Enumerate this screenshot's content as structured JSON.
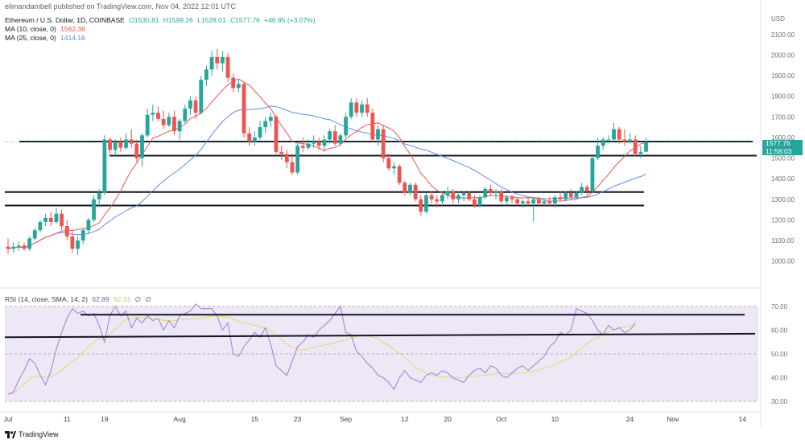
{
  "header": {
    "publisher_note": "elimandambell published on TradingView.com, Nov 04, 2022 12:01 UTC"
  },
  "legend": {
    "symbol": "Ethereum / U.S. Dollar, 1D, COINBASE",
    "open": "O1530.81",
    "high": "H1599.26",
    "low": "L1528.01",
    "close": "C1577.76",
    "change": "+46.95 (+3.07%)",
    "ma10_label": "MA (10, close, 0)",
    "ma10_value": "1562.38",
    "ma25_label": "MA (25, close, 0)",
    "ma25_value": "1414.16",
    "rsi_label": "RSI (14, close, SMA, 14, 2)",
    "rsi_value": "62.89",
    "rsi_sma_value": "62.31",
    "rsi_extra1": "∅",
    "rsi_extra2": "∅"
  },
  "price_tag": {
    "price": "1577.76",
    "countdown": "11:58:03"
  },
  "footer": {
    "brand": "TradingView"
  },
  "colors": {
    "up": "#26a69a",
    "down": "#ef5350",
    "ma10": "#ef5350",
    "ma25": "#5b8def",
    "rsi": "#9c7fd4",
    "rsi_sma": "#e2dc6b",
    "rsi_band": "#ede7f6"
  },
  "chart_data": [
    {
      "type": "candlestick",
      "title": "Ethereum / U.S. Dollar, 1D, COINBASE",
      "y_axis_unit": "USD",
      "ylim": [
        940,
        2150
      ],
      "y_ticks": [
        "1000.00",
        "1100.00",
        "1200.00",
        "1300.00",
        "1400.00",
        "1500.00",
        "1600.00",
        "1700.00",
        "1800.00",
        "1900.00",
        "2000.00",
        "2100.00"
      ],
      "x_tick_labels": [
        "Jul",
        "11",
        "19",
        "Aug",
        "15",
        "23",
        "Sep",
        "12",
        "20",
        "Oct",
        "10",
        "24",
        "Nov",
        "14"
      ],
      "candles": [
        {
          "o": 1070,
          "h": 1110,
          "l": 1035,
          "c": 1060
        },
        {
          "o": 1060,
          "h": 1090,
          "l": 1040,
          "c": 1070
        },
        {
          "o": 1070,
          "h": 1095,
          "l": 1050,
          "c": 1075
        },
        {
          "o": 1075,
          "h": 1090,
          "l": 1050,
          "c": 1060
        },
        {
          "o": 1060,
          "h": 1120,
          "l": 1050,
          "c": 1110
        },
        {
          "o": 1110,
          "h": 1160,
          "l": 1100,
          "c": 1150
        },
        {
          "o": 1150,
          "h": 1200,
          "l": 1140,
          "c": 1190
        },
        {
          "o": 1190,
          "h": 1230,
          "l": 1170,
          "c": 1210
        },
        {
          "o": 1210,
          "h": 1240,
          "l": 1170,
          "c": 1190
        },
        {
          "o": 1190,
          "h": 1260,
          "l": 1180,
          "c": 1230
        },
        {
          "o": 1230,
          "h": 1250,
          "l": 1150,
          "c": 1170
        },
        {
          "o": 1170,
          "h": 1200,
          "l": 1100,
          "c": 1120
        },
        {
          "o": 1120,
          "h": 1150,
          "l": 1040,
          "c": 1060
        },
        {
          "o": 1060,
          "h": 1120,
          "l": 1030,
          "c": 1100
        },
        {
          "o": 1100,
          "h": 1160,
          "l": 1080,
          "c": 1150
        },
        {
          "o": 1150,
          "h": 1210,
          "l": 1130,
          "c": 1200
        },
        {
          "o": 1200,
          "h": 1320,
          "l": 1190,
          "c": 1300
        },
        {
          "o": 1300,
          "h": 1350,
          "l": 1260,
          "c": 1330
        },
        {
          "o": 1330,
          "h": 1610,
          "l": 1320,
          "c": 1590
        },
        {
          "o": 1590,
          "h": 1600,
          "l": 1520,
          "c": 1540
        },
        {
          "o": 1540,
          "h": 1590,
          "l": 1510,
          "c": 1580
        },
        {
          "o": 1580,
          "h": 1600,
          "l": 1530,
          "c": 1550
        },
        {
          "o": 1550,
          "h": 1620,
          "l": 1540,
          "c": 1590
        },
        {
          "o": 1590,
          "h": 1640,
          "l": 1550,
          "c": 1570
        },
        {
          "o": 1570,
          "h": 1590,
          "l": 1480,
          "c": 1500
        },
        {
          "o": 1500,
          "h": 1620,
          "l": 1460,
          "c": 1610
        },
        {
          "o": 1610,
          "h": 1740,
          "l": 1600,
          "c": 1710
        },
        {
          "o": 1710,
          "h": 1760,
          "l": 1680,
          "c": 1720
        },
        {
          "o": 1720,
          "h": 1750,
          "l": 1680,
          "c": 1690
        },
        {
          "o": 1690,
          "h": 1730,
          "l": 1640,
          "c": 1660
        },
        {
          "o": 1660,
          "h": 1720,
          "l": 1650,
          "c": 1700
        },
        {
          "o": 1700,
          "h": 1730,
          "l": 1610,
          "c": 1630
        },
        {
          "o": 1630,
          "h": 1690,
          "l": 1590,
          "c": 1680
        },
        {
          "o": 1680,
          "h": 1760,
          "l": 1670,
          "c": 1740
        },
        {
          "o": 1740,
          "h": 1800,
          "l": 1710,
          "c": 1780
        },
        {
          "o": 1780,
          "h": 1800,
          "l": 1690,
          "c": 1720
        },
        {
          "o": 1720,
          "h": 1900,
          "l": 1710,
          "c": 1880
        },
        {
          "o": 1880,
          "h": 1950,
          "l": 1850,
          "c": 1930
        },
        {
          "o": 1930,
          "h": 2020,
          "l": 1900,
          "c": 1990
        },
        {
          "o": 1990,
          "h": 2030,
          "l": 1930,
          "c": 1960
        },
        {
          "o": 1960,
          "h": 2020,
          "l": 1920,
          "c": 1990
        },
        {
          "o": 1990,
          "h": 2010,
          "l": 1870,
          "c": 1890
        },
        {
          "o": 1890,
          "h": 1910,
          "l": 1820,
          "c": 1840
        },
        {
          "o": 1840,
          "h": 1880,
          "l": 1820,
          "c": 1860
        },
        {
          "o": 1860,
          "h": 1870,
          "l": 1600,
          "c": 1620
        },
        {
          "o": 1620,
          "h": 1650,
          "l": 1560,
          "c": 1580
        },
        {
          "o": 1580,
          "h": 1630,
          "l": 1560,
          "c": 1600
        },
        {
          "o": 1600,
          "h": 1680,
          "l": 1590,
          "c": 1650
        },
        {
          "o": 1650,
          "h": 1700,
          "l": 1620,
          "c": 1680
        },
        {
          "o": 1680,
          "h": 1720,
          "l": 1650,
          "c": 1700
        },
        {
          "o": 1700,
          "h": 1710,
          "l": 1520,
          "c": 1530
        },
        {
          "o": 1530,
          "h": 1560,
          "l": 1490,
          "c": 1520
        },
        {
          "o": 1520,
          "h": 1540,
          "l": 1450,
          "c": 1480
        },
        {
          "o": 1480,
          "h": 1520,
          "l": 1420,
          "c": 1430
        },
        {
          "o": 1430,
          "h": 1570,
          "l": 1420,
          "c": 1560
        },
        {
          "o": 1560,
          "h": 1600,
          "l": 1530,
          "c": 1550
        },
        {
          "o": 1550,
          "h": 1590,
          "l": 1540,
          "c": 1570
        },
        {
          "o": 1570,
          "h": 1610,
          "l": 1550,
          "c": 1580
        },
        {
          "o": 1580,
          "h": 1600,
          "l": 1540,
          "c": 1560
        },
        {
          "o": 1560,
          "h": 1610,
          "l": 1530,
          "c": 1590
        },
        {
          "o": 1590,
          "h": 1640,
          "l": 1570,
          "c": 1630
        },
        {
          "o": 1630,
          "h": 1660,
          "l": 1560,
          "c": 1570
        },
        {
          "o": 1570,
          "h": 1620,
          "l": 1560,
          "c": 1610
        },
        {
          "o": 1610,
          "h": 1720,
          "l": 1600,
          "c": 1700
        },
        {
          "o": 1700,
          "h": 1790,
          "l": 1690,
          "c": 1770
        },
        {
          "o": 1770,
          "h": 1790,
          "l": 1700,
          "c": 1720
        },
        {
          "o": 1720,
          "h": 1780,
          "l": 1700,
          "c": 1760
        },
        {
          "o": 1760,
          "h": 1790,
          "l": 1700,
          "c": 1720
        },
        {
          "o": 1720,
          "h": 1740,
          "l": 1580,
          "c": 1590
        },
        {
          "o": 1590,
          "h": 1660,
          "l": 1560,
          "c": 1640
        },
        {
          "o": 1640,
          "h": 1660,
          "l": 1480,
          "c": 1500
        },
        {
          "o": 1500,
          "h": 1520,
          "l": 1440,
          "c": 1450
        },
        {
          "o": 1450,
          "h": 1480,
          "l": 1420,
          "c": 1460
        },
        {
          "o": 1460,
          "h": 1470,
          "l": 1370,
          "c": 1380
        },
        {
          "o": 1380,
          "h": 1390,
          "l": 1320,
          "c": 1330
        },
        {
          "o": 1330,
          "h": 1380,
          "l": 1320,
          "c": 1370
        },
        {
          "o": 1370,
          "h": 1380,
          "l": 1290,
          "c": 1300
        },
        {
          "o": 1300,
          "h": 1320,
          "l": 1220,
          "c": 1240
        },
        {
          "o": 1240,
          "h": 1330,
          "l": 1230,
          "c": 1320
        },
        {
          "o": 1320,
          "h": 1340,
          "l": 1280,
          "c": 1300
        },
        {
          "o": 1300,
          "h": 1320,
          "l": 1260,
          "c": 1290
        },
        {
          "o": 1290,
          "h": 1340,
          "l": 1270,
          "c": 1320
        },
        {
          "o": 1320,
          "h": 1360,
          "l": 1300,
          "c": 1340
        },
        {
          "o": 1340,
          "h": 1350,
          "l": 1280,
          "c": 1300
        },
        {
          "o": 1300,
          "h": 1340,
          "l": 1280,
          "c": 1320
        },
        {
          "o": 1320,
          "h": 1340,
          "l": 1290,
          "c": 1330
        },
        {
          "o": 1330,
          "h": 1340,
          "l": 1290,
          "c": 1300
        },
        {
          "o": 1300,
          "h": 1320,
          "l": 1260,
          "c": 1270
        },
        {
          "o": 1270,
          "h": 1320,
          "l": 1260,
          "c": 1310
        },
        {
          "o": 1310,
          "h": 1360,
          "l": 1300,
          "c": 1350
        },
        {
          "o": 1350,
          "h": 1370,
          "l": 1320,
          "c": 1330
        },
        {
          "o": 1330,
          "h": 1350,
          "l": 1300,
          "c": 1340
        },
        {
          "o": 1340,
          "h": 1350,
          "l": 1280,
          "c": 1290
        },
        {
          "o": 1290,
          "h": 1320,
          "l": 1270,
          "c": 1310
        },
        {
          "o": 1310,
          "h": 1320,
          "l": 1280,
          "c": 1300
        },
        {
          "o": 1300,
          "h": 1310,
          "l": 1270,
          "c": 1280
        },
        {
          "o": 1280,
          "h": 1300,
          "l": 1260,
          "c": 1290
        },
        {
          "o": 1290,
          "h": 1310,
          "l": 1270,
          "c": 1280
        },
        {
          "o": 1280,
          "h": 1310,
          "l": 1190,
          "c": 1300
        },
        {
          "o": 1300,
          "h": 1310,
          "l": 1270,
          "c": 1280
        },
        {
          "o": 1280,
          "h": 1300,
          "l": 1270,
          "c": 1290
        },
        {
          "o": 1290,
          "h": 1310,
          "l": 1270,
          "c": 1280
        },
        {
          "o": 1280,
          "h": 1320,
          "l": 1260,
          "c": 1310
        },
        {
          "o": 1310,
          "h": 1340,
          "l": 1290,
          "c": 1300
        },
        {
          "o": 1300,
          "h": 1340,
          "l": 1290,
          "c": 1330
        },
        {
          "o": 1330,
          "h": 1350,
          "l": 1300,
          "c": 1310
        },
        {
          "o": 1310,
          "h": 1340,
          "l": 1300,
          "c": 1330
        },
        {
          "o": 1330,
          "h": 1380,
          "l": 1320,
          "c": 1360
        },
        {
          "o": 1360,
          "h": 1370,
          "l": 1320,
          "c": 1340
        },
        {
          "o": 1340,
          "h": 1520,
          "l": 1330,
          "c": 1500
        },
        {
          "o": 1500,
          "h": 1600,
          "l": 1490,
          "c": 1560
        },
        {
          "o": 1560,
          "h": 1600,
          "l": 1540,
          "c": 1590
        },
        {
          "o": 1590,
          "h": 1610,
          "l": 1570,
          "c": 1590
        },
        {
          "o": 1590,
          "h": 1670,
          "l": 1580,
          "c": 1640
        },
        {
          "o": 1640,
          "h": 1650,
          "l": 1570,
          "c": 1590
        },
        {
          "o": 1590,
          "h": 1640,
          "l": 1560,
          "c": 1580
        },
        {
          "o": 1580,
          "h": 1620,
          "l": 1570,
          "c": 1590
        },
        {
          "o": 1590,
          "h": 1610,
          "l": 1510,
          "c": 1520
        },
        {
          "o": 1520,
          "h": 1560,
          "l": 1500,
          "c": 1530
        },
        {
          "o": 1531,
          "h": 1599,
          "l": 1528,
          "c": 1578
        }
      ],
      "series": [
        {
          "name": "MA (10, close, 0)",
          "last": 1562.38
        },
        {
          "name": "MA (25, close, 0)",
          "last": 1414.16
        }
      ],
      "horizontal_lines": [
        1580,
        1512,
        1335,
        1270
      ],
      "current_price": 1577.76
    },
    {
      "type": "line",
      "title": "RSI (14, close, SMA, 14, 2)",
      "ylim": [
        27,
        73
      ],
      "y_ticks": [
        "30.00",
        "40.00",
        "50.00",
        "60.00",
        "70.00"
      ],
      "band": [
        30,
        70
      ],
      "series": [
        {
          "name": "RSI",
          "values": [
            33,
            34,
            39,
            43,
            48,
            46,
            41,
            37,
            43,
            52,
            59,
            65,
            69,
            67,
            68,
            66,
            67,
            62,
            55,
            66,
            70,
            66,
            68,
            61,
            65,
            63,
            66,
            64,
            65,
            60,
            64,
            61,
            66,
            67,
            68,
            71,
            69,
            69,
            69,
            66,
            60,
            63,
            50,
            49,
            53,
            56,
            59,
            57,
            61,
            54,
            45,
            43,
            41,
            47,
            53,
            55,
            58,
            57,
            60,
            62,
            64,
            67,
            70,
            59,
            58,
            51,
            49,
            46,
            44,
            41,
            40,
            38,
            35,
            40,
            43,
            40,
            39,
            38,
            41,
            42,
            41,
            43,
            42,
            40,
            39,
            38,
            41,
            43,
            44,
            42,
            45,
            44,
            41,
            40,
            42,
            44,
            45,
            43,
            45,
            47,
            49,
            53,
            55,
            59,
            58,
            60,
            69,
            68,
            67,
            64,
            60,
            58,
            62,
            60,
            61,
            59,
            60,
            63
          ]
        },
        {
          "name": "SMA",
          "values": []
        }
      ],
      "trendlines": [
        [
          66.5,
          66.5
        ],
        [
          57,
          58.5
        ]
      ],
      "last": 62.89
    }
  ]
}
